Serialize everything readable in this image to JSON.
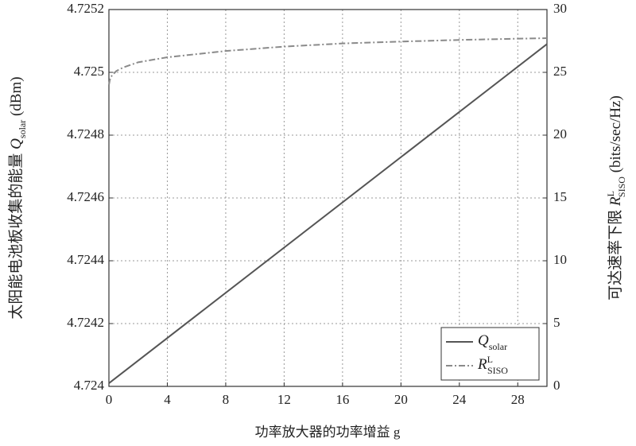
{
  "chart_data": {
    "type": "line",
    "xlabel": "功率放大器的功率增益 g",
    "ylabel": {
      "prefix": "太阳能电池板收集的能量 ",
      "symbol": "Q",
      "sub": "solar",
      "suffix": " (dBm)"
    },
    "y2label": {
      "prefix": "可达速率下限 ",
      "symbol": "R",
      "sup": "L",
      "sub": "SISO",
      "suffix": " (bits/sec/Hz)"
    },
    "xlim": [
      0,
      30
    ],
    "xticks": [
      0,
      4,
      8,
      12,
      16,
      20,
      24,
      28
    ],
    "ylim": [
      4.724,
      4.7252
    ],
    "yticks": [
      4.724,
      4.7242,
      4.7244,
      4.7246,
      4.7248,
      4.725,
      4.7252
    ],
    "y2lim": [
      0,
      30
    ],
    "y2ticks": [
      0,
      5,
      10,
      15,
      20,
      25,
      30
    ],
    "grid": true,
    "legend": "lower right",
    "series": [
      {
        "name": "Q",
        "sub": "solar",
        "color": "#555555",
        "style": "solid",
        "x": [
          0,
          30
        ],
        "values": [
          4.72401,
          4.72509
        ]
      },
      {
        "name": "R",
        "sup": "L",
        "sub": "SISO",
        "color": "#8a8a8a",
        "style": "dashdot",
        "axis": "y2",
        "x": [
          0,
          0.1,
          0.5,
          1,
          2,
          4,
          8,
          12,
          16,
          20,
          24,
          28,
          30
        ],
        "values": [
          24.0,
          24.6,
          25.1,
          25.4,
          25.8,
          26.2,
          26.7,
          27.05,
          27.3,
          27.45,
          27.58,
          27.68,
          27.72
        ]
      }
    ]
  }
}
